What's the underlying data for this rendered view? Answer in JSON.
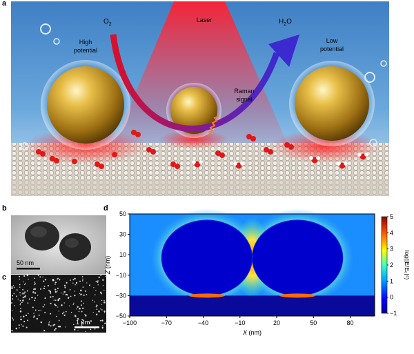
{
  "panels": {
    "a": {
      "letter": "a",
      "o2_prefix": "O",
      "o2_sub": "2",
      "laser": "Laser",
      "h2o_prefix": "H",
      "h2o_sub": "2",
      "h2o_suffix": "O",
      "high_potential_1": "High",
      "high_potential_2": "potential",
      "low_potential_1": "Low",
      "low_potential_2": "potential",
      "raman_1": "Raman",
      "raman_2": "signal"
    },
    "b": {
      "letter": "b",
      "scale_bar": "50 nm"
    },
    "c": {
      "letter": "c",
      "scale_bar": "1 μm"
    },
    "d": {
      "letter": "d",
      "xlabel_var": "X",
      "xlabel_unit": " (nm)",
      "ylabel_var": "Z",
      "ylabel_unit": " (nm)",
      "colorbar_label": "log(|E/E₀|⁴)",
      "x_ticks": [
        "−100",
        "−70",
        "−40",
        "−10",
        "20",
        "50",
        "80"
      ],
      "y_ticks": [
        "50",
        "30",
        "10",
        "−10",
        "−30",
        "−50"
      ],
      "colorbar_ticks": [
        "5",
        "4",
        "3",
        "2",
        "1",
        "0",
        "−1"
      ]
    }
  },
  "chart_data": {
    "type": "heatmap",
    "xlabel": "X (nm)",
    "ylabel": "Z (nm)",
    "colorbar_label": "log(|E/E0|^4)",
    "xlim": [
      -100,
      100
    ],
    "ylim": [
      -50,
      50
    ],
    "x_ticks": [
      -100,
      -70,
      -40,
      -10,
      20,
      50,
      80
    ],
    "y_ticks": [
      50,
      30,
      10,
      -10,
      -30,
      -50
    ],
    "colorbar_range": [
      -1,
      5
    ],
    "colorbar_ticks": [
      5,
      4,
      3,
      2,
      1,
      0,
      -1
    ],
    "particles": [
      {
        "center_x": -37,
        "center_z": 7,
        "radius": 37
      },
      {
        "center_x": 37,
        "center_z": 7,
        "radius": 37
      }
    ],
    "substrate_top_z": -30
  },
  "colors": {
    "laser": "#e8323c",
    "arrow_start": "#d8102a",
    "arrow_end": "#3c2ad0",
    "water": "#4f86c0",
    "gold": "#d4a72c",
    "background_heatmap": "#1a8dff"
  }
}
